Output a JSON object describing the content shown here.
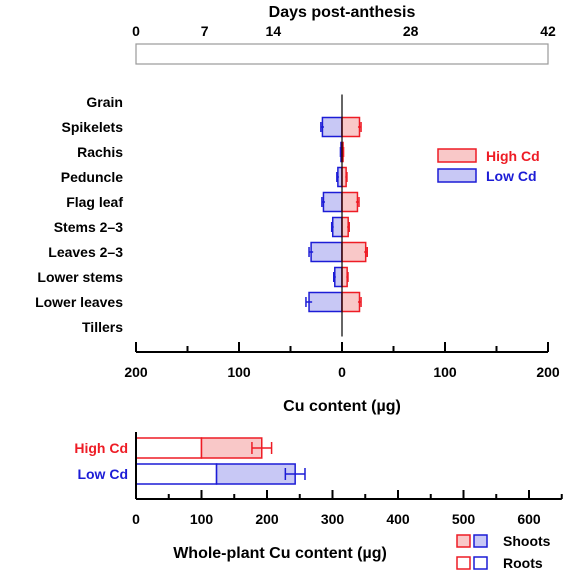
{
  "chart_data": [
    {
      "type": "bar",
      "title": "Days post-anthesis",
      "ticks": [
        0,
        7,
        14,
        28,
        42
      ],
      "xlim": [
        0,
        42
      ],
      "values": []
    },
    {
      "type": "bar",
      "orientation": "horizontal",
      "xlabel": "Cu content (µg)",
      "tick_labels": [
        "200",
        "100",
        "0",
        "100",
        "200"
      ],
      "xlim": [
        -200,
        200
      ],
      "categories": [
        "Grain",
        "Spikelets",
        "Rachis",
        "Peduncle",
        "Flag leaf",
        "Stems 2–3",
        "Leaves 2–3",
        "Lower stems",
        "Lower leaves",
        "Tillers"
      ],
      "legend_position": "right",
      "series": [
        {
          "name": "High Cd",
          "color": "#ee1c25",
          "fill": "#f9c8c8",
          "values": [
            0,
            17,
            1,
            4,
            15,
            6,
            23,
            5,
            17,
            0
          ],
          "errors": [
            0,
            1.5,
            0.5,
            0.8,
            1.5,
            1,
            1.5,
            0.8,
            1.5,
            0
          ]
        },
        {
          "name": "Low Cd",
          "color": "#1c1cd6",
          "fill": "#c8c8f5",
          "values": [
            0,
            19,
            1,
            4,
            18,
            9,
            30,
            7,
            32,
            0
          ],
          "errors": [
            0,
            1.5,
            0.5,
            1,
            1.5,
            1,
            2,
            1,
            3,
            0
          ]
        }
      ]
    },
    {
      "type": "bar",
      "orientation": "horizontal",
      "stacked": true,
      "xlabel": "Whole-plant Cu content (µg)",
      "ticks": [
        0,
        100,
        200,
        300,
        400,
        500,
        600
      ],
      "xlim": [
        0,
        650
      ],
      "categories": [
        "High Cd",
        "Low Cd"
      ],
      "category_colors": [
        "#ee1c25",
        "#1c1cd6"
      ],
      "roots": [
        100,
        123
      ],
      "shoots": [
        92,
        120
      ],
      "totals": [
        192,
        243
      ],
      "errors": [
        15,
        15
      ],
      "legend": {
        "shoots": "Shoots",
        "roots": "Roots"
      },
      "legend_position": "bottom-right"
    }
  ]
}
